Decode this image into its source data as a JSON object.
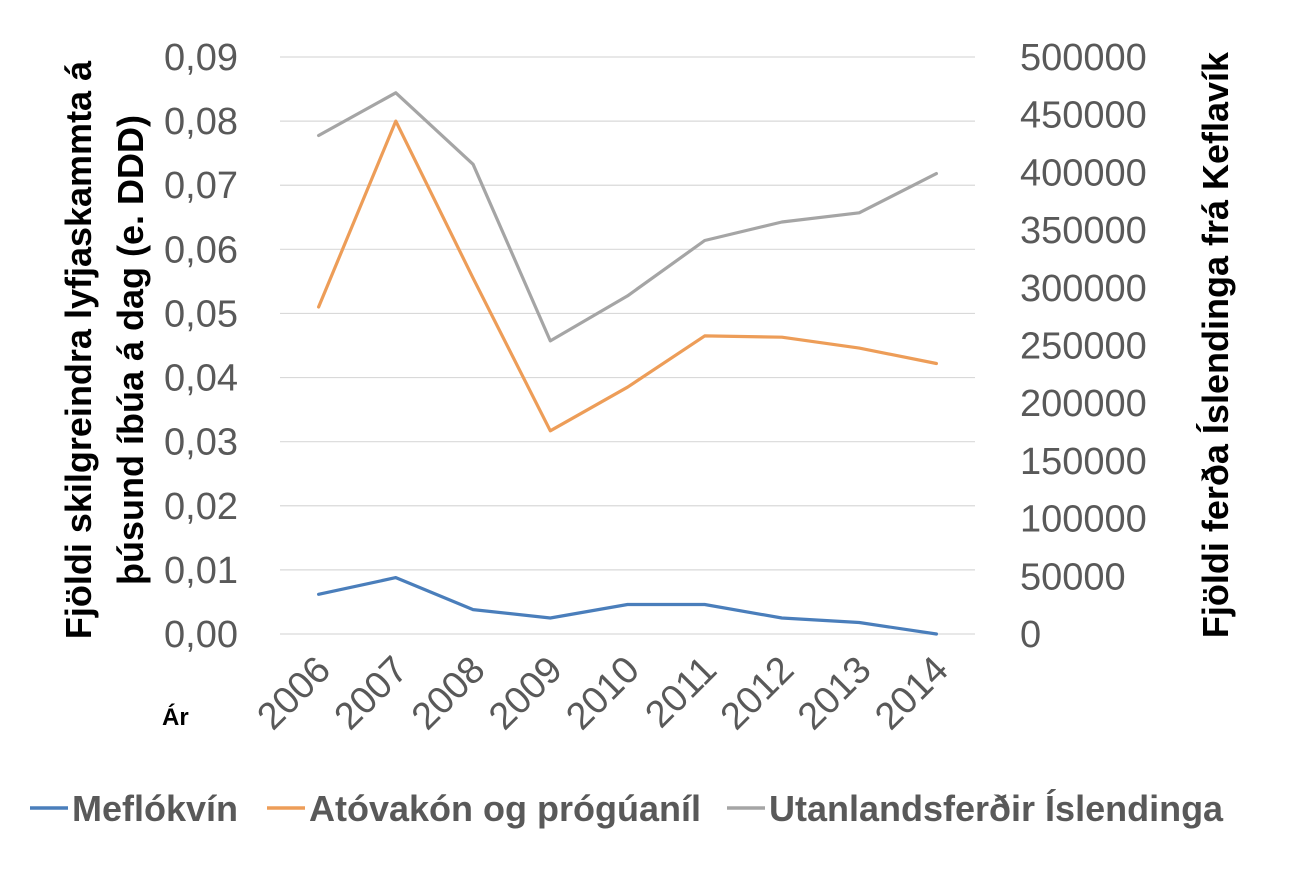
{
  "chart_data": {
    "type": "line",
    "categories": [
      "2006",
      "2007",
      "2008",
      "2009",
      "2010",
      "2011",
      "2012",
      "2013",
      "2014"
    ],
    "xlabel": "Ár",
    "ylabel": "Fjöldi skilgreindra lyfjaskammta á þúsund íbúa á dag (e. DDD)",
    "y2label": "Fjöldi ferða Íslendinga frá Keflavík",
    "ylim": [
      0,
      0.09
    ],
    "y2lim": [
      0,
      500000
    ],
    "yticks": [
      "0,00",
      "0,01",
      "0,02",
      "0,03",
      "0,04",
      "0,05",
      "0,06",
      "0,07",
      "0,08",
      "0,09"
    ],
    "y2ticks": [
      "0",
      "50000",
      "100000",
      "150000",
      "200000",
      "250000",
      "300000",
      "350000",
      "400000",
      "450000",
      "500000"
    ],
    "grid": true,
    "legend": "bottom",
    "series": [
      {
        "name": "Meflókvín",
        "axis": "left",
        "color": "#4a7ebb",
        "values": [
          0.0062,
          0.0088,
          0.0038,
          0.0025,
          0.0046,
          0.0046,
          0.0025,
          0.0018,
          0.0
        ]
      },
      {
        "name": "Atóvakón og prógúaníl",
        "axis": "left",
        "color": "#ed9d58",
        "values": [
          0.051,
          0.08,
          0.0555,
          0.0317,
          0.0385,
          0.0465,
          0.0463,
          0.0446,
          0.0422
        ]
      },
      {
        "name": "Utanlandsferðir Íslendinga",
        "axis": "right",
        "color": "#a5a5a5",
        "values": [
          432000,
          469000,
          407000,
          254000,
          293000,
          341000,
          357000,
          365000,
          399000
        ]
      }
    ]
  }
}
